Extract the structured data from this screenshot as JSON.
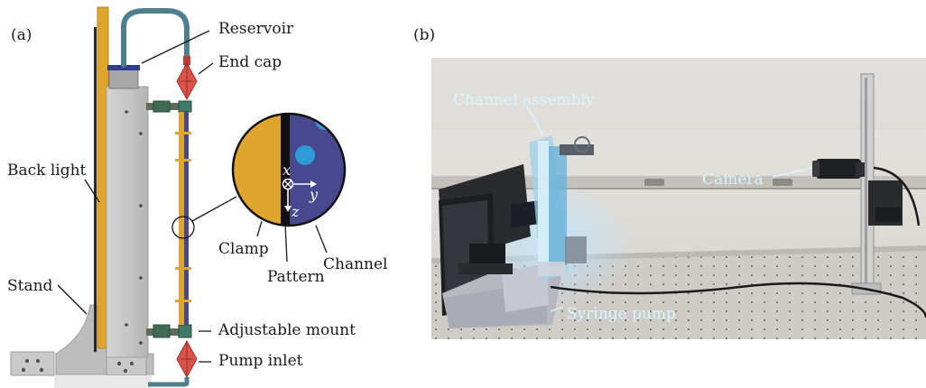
{
  "panel_a": {
    "label": "(a)",
    "callouts": {
      "reservoir": "Reservoir",
      "end_cap": "End cap",
      "back_light": "Back light",
      "stand": "Stand",
      "adjustable_mount": "Adjustable mount",
      "pump_inlet": "Pump inlet",
      "clamp": "Clamp",
      "pattern": "Pattern",
      "channel": "Channel"
    },
    "axes": {
      "x": "x",
      "y": "y",
      "z": "z"
    },
    "colors": {
      "clamp": "#E0A52C",
      "channel": "#48488F",
      "particle": "#2E9BD6",
      "frame": "#C8C8C8",
      "end_cap": "#D9534A",
      "tube": "#4E7F8F"
    }
  },
  "panel_b": {
    "label": "(b)",
    "callouts": {
      "channel_assembly": "Channel assembly",
      "camera": "Camera",
      "syringe_pump": "Syringe pump"
    }
  }
}
